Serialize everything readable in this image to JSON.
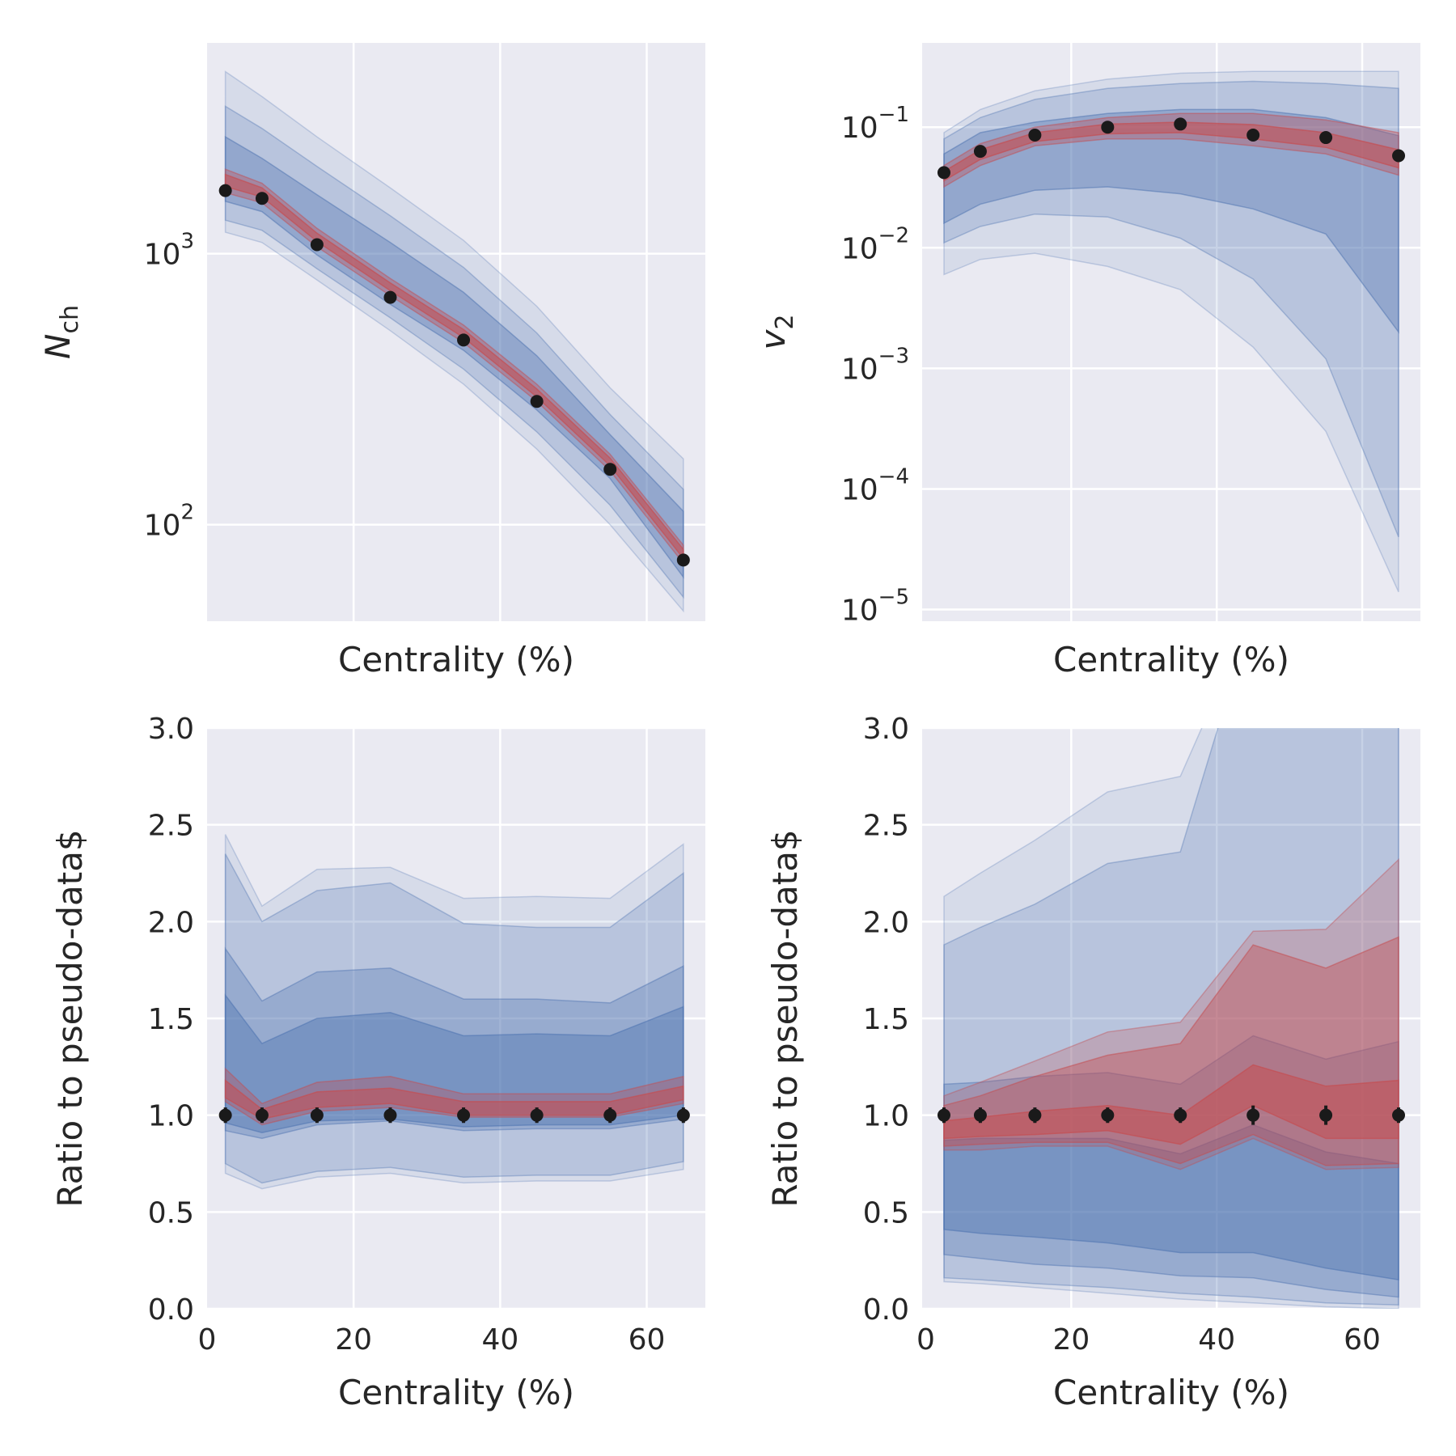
{
  "colors": {
    "background": "#eaeaf2",
    "grid": "#ffffff",
    "prior_band": "#4c72b0",
    "posterior_band": "#c44e52",
    "points": "#1a1a1a"
  },
  "chart_data": [
    {
      "id": "nch",
      "type": "line",
      "yscale": "log",
      "xlabel": "Centrality (%)",
      "ylabel_main": "N",
      "ylabel_sub": "ch",
      "xlim": [
        0,
        68
      ],
      "ylim": [
        44,
        6000
      ],
      "xticks_visible": false,
      "yticks": [
        {
          "value": 100,
          "base": "10",
          "exp": "2"
        },
        {
          "value": 1000,
          "base": "10",
          "exp": "3"
        }
      ],
      "x": [
        2.5,
        7.5,
        15,
        25,
        35,
        45,
        55,
        65
      ],
      "points": [
        1710,
        1600,
        1080,
        690,
        480,
        285,
        160,
        74
      ],
      "bands": [
        {
          "color": "prior",
          "opacity": 0.12,
          "low": [
            1200,
            1100,
            800,
            520,
            330,
            190,
            100,
            48
          ],
          "high": [
            4700,
            3800,
            2700,
            1750,
            1120,
            640,
            320,
            175
          ]
        },
        {
          "color": "prior",
          "opacity": 0.22,
          "low": [
            1330,
            1220,
            880,
            580,
            375,
            220,
            118,
            54
          ],
          "high": [
            3500,
            2900,
            2100,
            1380,
            890,
            510,
            255,
            135
          ]
        },
        {
          "color": "prior",
          "opacity": 0.35,
          "low": [
            1560,
            1430,
            990,
            650,
            440,
            265,
            148,
            64
          ],
          "high": [
            2700,
            2250,
            1650,
            1100,
            720,
            420,
            215,
            112
          ]
        },
        {
          "color": "posterior",
          "opacity": 0.35,
          "low": [
            1680,
            1540,
            1060,
            700,
            470,
            285,
            158,
            72
          ],
          "high": [
            2050,
            1820,
            1240,
            810,
            545,
            330,
            182,
            84
          ]
        },
        {
          "color": "posterior",
          "opacity": 0.55,
          "low": [
            1770,
            1620,
            1110,
            730,
            490,
            296,
            165,
            75
          ],
          "high": [
            1960,
            1750,
            1190,
            780,
            525,
            317,
            176,
            81
          ]
        }
      ]
    },
    {
      "id": "v2",
      "type": "line",
      "yscale": "log",
      "xlabel": "Centrality (%)",
      "ylabel_main": "v",
      "ylabel_sub": "2",
      "xlim": [
        -0.5,
        68
      ],
      "ylim": [
        8e-06,
        0.5
      ],
      "xticks_visible": false,
      "yticks": [
        {
          "value": 1e-05,
          "base": "10",
          "exp": "−5"
        },
        {
          "value": 0.0001,
          "base": "10",
          "exp": "−4"
        },
        {
          "value": 0.001,
          "base": "10",
          "exp": "−3"
        },
        {
          "value": 0.01,
          "base": "10",
          "exp": "−2"
        },
        {
          "value": 0.1,
          "base": "10",
          "exp": "−1"
        }
      ],
      "x": [
        2.5,
        7.5,
        15,
        25,
        35,
        45,
        55,
        65
      ],
      "points": [
        0.042,
        0.063,
        0.086,
        0.1,
        0.106,
        0.086,
        0.082,
        0.058
      ],
      "bands": [
        {
          "color": "prior",
          "opacity": 0.12,
          "low": [
            0.006,
            0.008,
            0.009,
            0.007,
            0.0045,
            0.0015,
            0.0003,
            1.4e-05
          ],
          "high": [
            0.09,
            0.14,
            0.2,
            0.25,
            0.28,
            0.29,
            0.29,
            0.29
          ]
        },
        {
          "color": "prior",
          "opacity": 0.22,
          "low": [
            0.011,
            0.015,
            0.019,
            0.018,
            0.012,
            0.0055,
            0.0012,
            4e-05
          ],
          "high": [
            0.08,
            0.12,
            0.17,
            0.21,
            0.23,
            0.24,
            0.23,
            0.21
          ]
        },
        {
          "color": "prior",
          "opacity": 0.35,
          "low": [
            0.016,
            0.023,
            0.03,
            0.032,
            0.028,
            0.021,
            0.013,
            0.002
          ],
          "high": [
            0.06,
            0.09,
            0.11,
            0.13,
            0.14,
            0.14,
            0.12,
            0.085
          ]
        },
        {
          "color": "posterior",
          "opacity": 0.35,
          "low": [
            0.032,
            0.048,
            0.07,
            0.08,
            0.08,
            0.07,
            0.06,
            0.04
          ],
          "high": [
            0.048,
            0.073,
            0.1,
            0.12,
            0.13,
            0.13,
            0.115,
            0.09
          ]
        },
        {
          "color": "posterior",
          "opacity": 0.55,
          "low": [
            0.036,
            0.054,
            0.076,
            0.088,
            0.09,
            0.08,
            0.068,
            0.046
          ],
          "high": [
            0.043,
            0.065,
            0.09,
            0.106,
            0.11,
            0.105,
            0.09,
            0.065
          ]
        }
      ]
    },
    {
      "id": "nch_ratio",
      "type": "line",
      "yscale": "linear",
      "xlabel": "Centrality (%)",
      "ylabel": "Ratio to pseudo-data$",
      "xlim": [
        0,
        68
      ],
      "ylim": [
        0,
        3
      ],
      "xticks_visible": true,
      "xticks": [
        0,
        20,
        40,
        60
      ],
      "yticks": [
        0.0,
        0.5,
        1.0,
        1.5,
        2.0,
        2.5,
        3.0
      ],
      "ytick_labels": [
        "0.0",
        "0.5",
        "1.0",
        "1.5",
        "2.0",
        "2.5",
        "3.0"
      ],
      "x": [
        2.5,
        7.5,
        15,
        25,
        35,
        45,
        55,
        65
      ],
      "points": [
        1,
        1,
        1,
        1,
        1,
        1,
        1,
        1
      ],
      "errors": [
        0.04,
        0.04,
        0.04,
        0.04,
        0.04,
        0.04,
        0.04,
        0.04
      ],
      "bands": [
        {
          "color": "prior",
          "opacity": 0.12,
          "low": [
            0.7,
            0.62,
            0.68,
            0.7,
            0.65,
            0.66,
            0.66,
            0.72
          ],
          "high": [
            2.45,
            2.08,
            2.27,
            2.28,
            2.12,
            2.13,
            2.12,
            2.4
          ]
        },
        {
          "color": "prior",
          "opacity": 0.22,
          "low": [
            0.75,
            0.65,
            0.71,
            0.73,
            0.68,
            0.69,
            0.69,
            0.76
          ],
          "high": [
            2.35,
            2.0,
            2.16,
            2.2,
            1.99,
            1.97,
            1.97,
            2.25
          ]
        },
        {
          "color": "prior",
          "opacity": 0.3,
          "low": [
            0.92,
            0.88,
            0.95,
            0.97,
            0.92,
            0.93,
            0.93,
            0.98
          ],
          "high": [
            1.86,
            1.59,
            1.74,
            1.76,
            1.6,
            1.6,
            1.58,
            1.77
          ]
        },
        {
          "color": "prior",
          "opacity": 0.4,
          "low": [
            0.96,
            0.91,
            0.97,
            0.98,
            0.94,
            0.95,
            0.95,
            1.0
          ],
          "high": [
            1.62,
            1.37,
            1.5,
            1.53,
            1.41,
            1.42,
            1.41,
            1.56
          ]
        },
        {
          "color": "posterior",
          "opacity": 0.35,
          "low": [
            1.07,
            0.95,
            1.02,
            1.04,
            0.99,
            0.99,
            0.99,
            1.06
          ],
          "high": [
            1.24,
            1.06,
            1.17,
            1.2,
            1.11,
            1.11,
            1.11,
            1.2
          ]
        },
        {
          "color": "posterior",
          "opacity": 0.55,
          "low": [
            1.09,
            0.98,
            1.04,
            1.06,
            1.0,
            1.0,
            1.0,
            1.08
          ],
          "high": [
            1.18,
            1.03,
            1.12,
            1.14,
            1.07,
            1.07,
            1.07,
            1.15
          ]
        }
      ]
    },
    {
      "id": "v2_ratio",
      "type": "line",
      "yscale": "linear",
      "xlabel": "Centrality (%)",
      "ylabel": "Ratio to pseudo-data$",
      "xlim": [
        -0.5,
        68
      ],
      "ylim": [
        0,
        3
      ],
      "xticks_visible": true,
      "xticks": [
        0,
        20,
        40,
        60
      ],
      "yticks": [
        0.0,
        0.5,
        1.0,
        1.5,
        2.0,
        2.5,
        3.0
      ],
      "ytick_labels": [
        "0.0",
        "0.5",
        "1.0",
        "1.5",
        "2.0",
        "2.5",
        "3.0"
      ],
      "x": [
        2.5,
        7.5,
        15,
        25,
        35,
        45,
        55,
        65
      ],
      "points": [
        1,
        1,
        1,
        1,
        1,
        1,
        1,
        1
      ],
      "errors": [
        0.04,
        0.04,
        0.04,
        0.04,
        0.04,
        0.05,
        0.05,
        0.04
      ],
      "bands": [
        {
          "color": "prior",
          "opacity": 0.12,
          "low": [
            0.14,
            0.13,
            0.11,
            0.08,
            0.05,
            0.03,
            0.01,
            0.0
          ],
          "high": [
            2.13,
            2.25,
            2.42,
            2.67,
            2.75,
            3.6,
            3.6,
            3.6
          ]
        },
        {
          "color": "prior",
          "opacity": 0.22,
          "low": [
            0.16,
            0.15,
            0.13,
            0.11,
            0.08,
            0.06,
            0.03,
            0.02
          ],
          "high": [
            1.88,
            1.97,
            2.09,
            2.3,
            2.36,
            3.6,
            3.6,
            3.6
          ]
        },
        {
          "color": "prior",
          "opacity": 0.3,
          "low": [
            0.28,
            0.26,
            0.23,
            0.21,
            0.17,
            0.16,
            0.1,
            0.06
          ],
          "high": [
            1.16,
            1.17,
            1.2,
            1.22,
            1.16,
            1.41,
            1.29,
            1.38
          ]
        },
        {
          "color": "prior",
          "opacity": 0.4,
          "low": [
            0.41,
            0.39,
            0.37,
            0.34,
            0.29,
            0.29,
            0.21,
            0.15
          ],
          "high": [
            0.87,
            0.88,
            0.88,
            0.88,
            0.8,
            0.95,
            0.81,
            0.75
          ]
        },
        {
          "color": "posterior",
          "opacity": 0.25,
          "low": [
            0.82,
            0.82,
            0.84,
            0.84,
            0.72,
            0.88,
            0.72,
            0.73
          ],
          "high": [
            1.1,
            1.17,
            1.28,
            1.43,
            1.48,
            1.95,
            1.96,
            2.32
          ]
        },
        {
          "color": "posterior",
          "opacity": 0.4,
          "low": [
            0.84,
            0.85,
            0.86,
            0.86,
            0.75,
            0.9,
            0.74,
            0.75
          ],
          "high": [
            1.05,
            1.1,
            1.2,
            1.31,
            1.37,
            1.88,
            1.76,
            1.92
          ]
        },
        {
          "color": "posterior",
          "opacity": 0.55,
          "low": [
            0.88,
            0.89,
            0.9,
            0.92,
            0.85,
            1.05,
            0.88,
            0.88
          ],
          "high": [
            0.97,
            0.99,
            1.02,
            1.05,
            1.0,
            1.26,
            1.15,
            1.18
          ]
        }
      ]
    }
  ]
}
